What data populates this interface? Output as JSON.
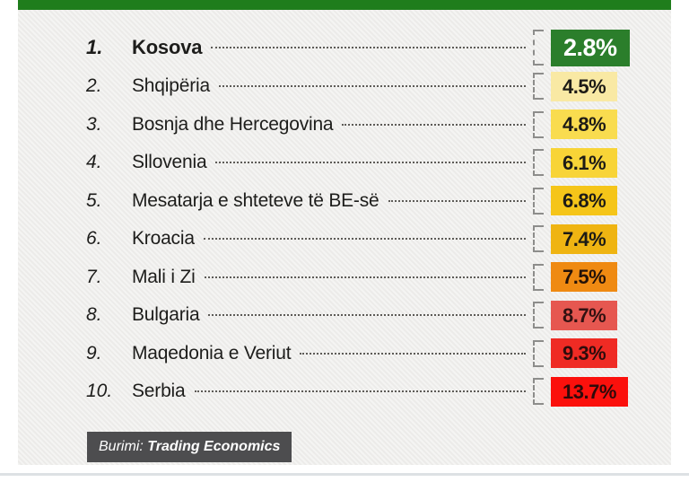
{
  "page": {
    "background": "#ffffff",
    "card_background": "#efeeec",
    "top_bar_color": "#1f7d1c",
    "bottom_line_color": "#dde1e4"
  },
  "source": {
    "prefix": "Burimi:",
    "name": "Trading Economics",
    "background": "#4d4d4f",
    "text_color": "#ffffff"
  },
  "rows": [
    {
      "rank": "1.",
      "label": "Kosova",
      "value": "2.8%",
      "color": "#2b7e2b",
      "text_color": "#ffffff",
      "emphasis": true
    },
    {
      "rank": "2.",
      "label": "Shqipëria",
      "value": "4.5%",
      "color": "#f9e9a4",
      "text_color": "#1d1b16",
      "emphasis": false
    },
    {
      "rank": "3.",
      "label": "Bosnja dhe Hercegovina",
      "value": "4.8%",
      "color": "#f9dc4f",
      "text_color": "#1d1b16",
      "emphasis": false
    },
    {
      "rank": "4.",
      "label": "Sllovenia",
      "value": "6.1%",
      "color": "#f8d437",
      "text_color": "#1d1b16",
      "emphasis": false
    },
    {
      "rank": "5.",
      "label": "Mesatarja e shteteve të BE-së",
      "value": "6.8%",
      "color": "#f5c519",
      "text_color": "#1d1b16",
      "emphasis": false
    },
    {
      "rank": "6.",
      "label": "Kroacia",
      "value": "7.4%",
      "color": "#efb412",
      "text_color": "#1d1b16",
      "emphasis": false
    },
    {
      "rank": "7.",
      "label": "Mali i Zi",
      "value": "7.5%",
      "color": "#ef8a12",
      "text_color": "#241208",
      "emphasis": false
    },
    {
      "rank": "8.",
      "label": "Bulgaria",
      "value": "8.7%",
      "color": "#e65750",
      "text_color": "#331111",
      "emphasis": false
    },
    {
      "rank": "9.",
      "label": "Maqedonia e Veriut",
      "value": "9.3%",
      "color": "#ef2b24",
      "text_color": "#2e0c0c",
      "emphasis": false
    },
    {
      "rank": "10.",
      "label": "Serbia",
      "value": "13.7%",
      "color": "#fb100c",
      "text_color": "#2e0a0a",
      "emphasis": false
    }
  ],
  "chart_data": {
    "type": "bar",
    "orientation": "ranked-list",
    "categories": [
      "Kosova",
      "Shqipëria",
      "Bosnja dhe Hercegovina",
      "Sllovenia",
      "Mesatarja e shteteve të BE-së",
      "Kroacia",
      "Mali i Zi",
      "Bulgaria",
      "Maqedonia e Veriut",
      "Serbia"
    ],
    "values": [
      2.8,
      4.5,
      4.8,
      6.1,
      6.8,
      7.4,
      7.5,
      8.7,
      9.3,
      13.7
    ],
    "unit": "%",
    "ranks": [
      1,
      2,
      3,
      4,
      5,
      6,
      7,
      8,
      9,
      10
    ],
    "bar_colors": [
      "#2b7e2b",
      "#f9e9a4",
      "#f9dc4f",
      "#f8d437",
      "#f5c519",
      "#efb412",
      "#ef8a12",
      "#e65750",
      "#ef2b24",
      "#fb100c"
    ],
    "highlighted_category": "Kosova",
    "source_label": "Burimi: Trading Economics",
    "legend": "none",
    "grid": "off"
  }
}
